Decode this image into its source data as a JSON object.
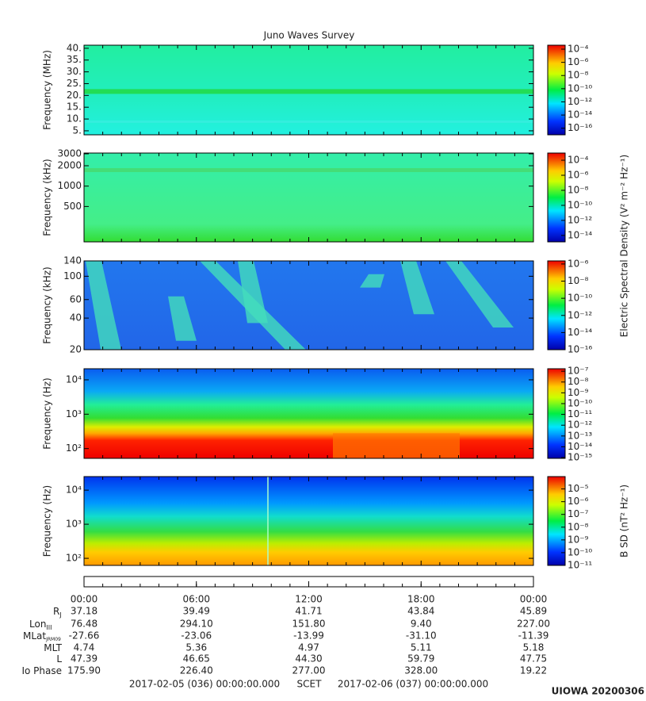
{
  "title": "Juno Waves Survey",
  "chart_data": [
    {
      "type": "spectrogram",
      "ylabel": "Frequency (MHz)",
      "ylim": [
        3.3,
        41.3
      ],
      "log": false,
      "yticks": [
        {
          "value": 5,
          "label": "5."
        },
        {
          "value": 10,
          "label": "10."
        },
        {
          "value": 15,
          "label": "15."
        },
        {
          "value": 20,
          "label": "20."
        },
        {
          "value": 25,
          "label": "25."
        },
        {
          "value": 30,
          "label": "30."
        },
        {
          "value": 35,
          "label": "35."
        },
        {
          "value": 40,
          "label": "40."
        }
      ],
      "clim": [
        1e-17,
        0.0004
      ],
      "cticks": [
        {
          "value": 0.0001,
          "label": "10⁻⁴"
        },
        {
          "value": 1e-06,
          "label": "10⁻⁶"
        },
        {
          "value": 1e-08,
          "label": "10⁻⁸"
        },
        {
          "value": 1e-10,
          "label": "10⁻¹⁰"
        },
        {
          "value": 1e-12,
          "label": "10⁻¹²"
        },
        {
          "value": 1e-14,
          "label": "10⁻¹⁴"
        },
        {
          "value": 1e-16,
          "label": "10⁻¹⁶"
        }
      ]
    },
    {
      "type": "spectrogram",
      "ylabel": "Frequency (kHz)",
      "ylim": [
        150,
        3080
      ],
      "log": true,
      "yticks": [
        500,
        1000,
        2000,
        3000
      ],
      "clim": [
        1.4e-15,
        0.0009
      ],
      "cticks": [
        {
          "value": 0.0001,
          "label": "10⁻⁴"
        },
        {
          "value": 1e-06,
          "label": "10⁻⁶"
        },
        {
          "value": 1e-08,
          "label": "10⁻⁸"
        },
        {
          "value": 1e-10,
          "label": "10⁻¹⁰"
        },
        {
          "value": 1e-12,
          "label": "10⁻¹²"
        },
        {
          "value": 1e-14,
          "label": "10⁻¹⁴"
        }
      ],
      "clabel": "Electric Spectral Density (V² m⁻² Hz⁻¹)"
    },
    {
      "type": "spectrogram",
      "ylabel": "Frequency (kHz)",
      "ylim": [
        20,
        140
      ],
      "log": true,
      "yticks": [
        20,
        40,
        60,
        100,
        140
      ],
      "clim": [
        1e-16,
        2.3e-06
      ],
      "cticks": [
        {
          "value": 1e-06,
          "label": "10⁻⁶"
        },
        {
          "value": 1e-08,
          "label": "10⁻⁸"
        },
        {
          "value": 1e-10,
          "label": "10⁻¹⁰"
        },
        {
          "value": 1e-12,
          "label": "10⁻¹²"
        },
        {
          "value": 1e-14,
          "label": "10⁻¹⁴"
        },
        {
          "value": 1e-16,
          "label": "10⁻¹⁶"
        }
      ]
    },
    {
      "type": "spectrogram",
      "ylabel": "Frequency (Hz)",
      "ylim": [
        52,
        21000
      ],
      "log": true,
      "yticks": [
        {
          "value": 100,
          "label": "10²"
        },
        {
          "value": 1000,
          "label": "10³"
        },
        {
          "value": 10000,
          "label": "10⁴"
        }
      ],
      "clim": [
        8.5e-16,
        1.7e-07
      ],
      "cticks": [
        {
          "value": 1e-07,
          "label": "10⁻⁷"
        },
        {
          "value": 1e-08,
          "label": "10⁻⁸"
        },
        {
          "value": 1e-09,
          "label": "10⁻⁹"
        },
        {
          "value": 1e-10,
          "label": "10⁻¹⁰"
        },
        {
          "value": 1e-11,
          "label": "10⁻¹¹"
        },
        {
          "value": 1e-12,
          "label": "10⁻¹²"
        },
        {
          "value": 1e-13,
          "label": "10⁻¹³"
        },
        {
          "value": 1e-14,
          "label": "10⁻¹⁴"
        },
        {
          "value": 1e-15,
          "label": "10⁻¹⁵"
        }
      ]
    },
    {
      "type": "spectrogram",
      "ylabel": "Frequency (Hz)",
      "ylim": [
        62,
        25000
      ],
      "log": true,
      "yticks": [
        {
          "value": 100,
          "label": "10²"
        },
        {
          "value": 1000,
          "label": "10³"
        },
        {
          "value": 10000,
          "label": "10⁴"
        }
      ],
      "clim": [
        1e-11,
        9.3e-05
      ],
      "cticks": [
        {
          "value": 1e-05,
          "label": "10⁻⁵"
        },
        {
          "value": 1e-06,
          "label": "10⁻⁶"
        },
        {
          "value": 1e-07,
          "label": "10⁻⁷"
        },
        {
          "value": 1e-08,
          "label": "10⁻⁸"
        },
        {
          "value": 1e-09,
          "label": "10⁻⁹"
        },
        {
          "value": 1e-10,
          "label": "10⁻¹⁰"
        },
        {
          "value": 1e-11,
          "label": "10⁻¹¹"
        }
      ],
      "clabel": "B SD (nT² Hz⁻¹)"
    }
  ],
  "time_axis": {
    "xlim": [
      0,
      24
    ],
    "xticks": [
      {
        "value": 0,
        "label": "00:00"
      },
      {
        "value": 6,
        "label": "06:00"
      },
      {
        "value": 12,
        "label": "12:00"
      },
      {
        "value": 18,
        "label": "18:00"
      },
      {
        "value": 24,
        "label": "00:00"
      }
    ]
  },
  "ephemeris": [
    {
      "label": "R",
      "sub": "J",
      "values": [
        "37.18",
        "39.49",
        "41.71",
        "43.84",
        "45.89"
      ]
    },
    {
      "label": "Lon",
      "sub": "III",
      "values": [
        "76.48",
        "294.10",
        "151.80",
        "9.40",
        "227.00"
      ]
    },
    {
      "label": "MLat",
      "sub": "JRM09",
      "values": [
        "-27.66",
        "-23.06",
        "-13.99",
        "-31.10",
        "-11.39"
      ]
    },
    {
      "label": "MLT",
      "values": [
        "4.74",
        "5.36",
        "4.97",
        "5.11",
        "5.18"
      ]
    },
    {
      "label": "L",
      "values": [
        "47.39",
        "46.65",
        "44.30",
        "59.79",
        "47.75"
      ]
    },
    {
      "label": "Io Phase",
      "values": [
        "175.90",
        "226.40",
        "277.00",
        "328.00",
        "19.22"
      ]
    }
  ],
  "footer": {
    "start": "2017-02-05 (036) 00:00:00.000",
    "center": "SCET",
    "end": "2017-02-06 (037) 00:00:00.000",
    "stamp": "UIOWA 20200306"
  }
}
